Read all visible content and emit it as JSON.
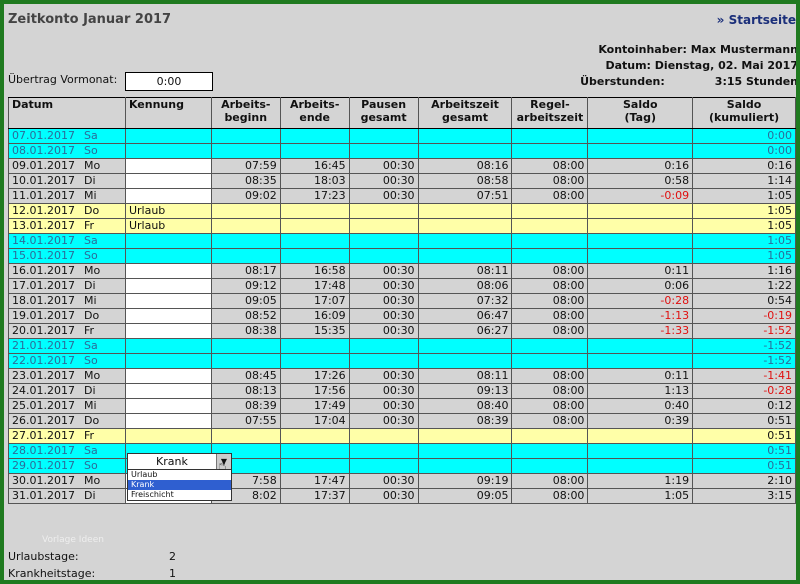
{
  "title": "Zeitkonto Januar 2017",
  "startseite": "» Startseite",
  "info": {
    "kontoinhaber": "Kontoinhaber: Max Mustermann",
    "datum": "Datum: Dienstag, 02. Mai 2017",
    "ueberstunden_label": "Überstunden:",
    "ueberstunden_value": "3:15 Stunden"
  },
  "uebertrag": {
    "label": "Übertrag Vormonat:",
    "value": "0:00"
  },
  "columns": [
    "Datum",
    "Kennung",
    "Arbeits-\nbeginn",
    "Arbeits-\nende",
    "Pausen\ngesamt",
    "Arbeitszeit\ngesamt",
    "Regel-\narbeitszeit",
    "Saldo\n(Tag)",
    "Saldo\n(kumuliert)"
  ],
  "rows": [
    {
      "type": "weekend",
      "date": "07.01.2017",
      "wd": "Sa",
      "kennung": "",
      "beginn": "",
      "ende": "",
      "pause": "",
      "az": "",
      "regel": "",
      "saldo": "",
      "kum": "0:00",
      "sneg": false,
      "kneg": false
    },
    {
      "type": "weekend",
      "date": "08.01.2017",
      "wd": "So",
      "kennung": "",
      "beginn": "",
      "ende": "",
      "pause": "",
      "az": "",
      "regel": "",
      "saldo": "",
      "kum": "0:00",
      "sneg": false,
      "kneg": false
    },
    {
      "type": "work",
      "date": "09.01.2017",
      "wd": "Mo",
      "kennung": "",
      "beginn": "07:59",
      "ende": "16:45",
      "pause": "00:30",
      "az": "08:16",
      "regel": "08:00",
      "saldo": "0:16",
      "kum": "0:16",
      "sneg": false,
      "kneg": false
    },
    {
      "type": "work",
      "date": "10.01.2017",
      "wd": "Di",
      "kennung": "",
      "beginn": "08:35",
      "ende": "18:03",
      "pause": "00:30",
      "az": "08:58",
      "regel": "08:00",
      "saldo": "0:58",
      "kum": "1:14",
      "sneg": false,
      "kneg": false
    },
    {
      "type": "work",
      "date": "11.01.2017",
      "wd": "Mi",
      "kennung": "",
      "beginn": "09:02",
      "ende": "17:23",
      "pause": "00:30",
      "az": "07:51",
      "regel": "08:00",
      "saldo": "-0:09",
      "kum": "1:05",
      "sneg": true,
      "kneg": false
    },
    {
      "type": "holiday",
      "date": "12.01.2017",
      "wd": "Do",
      "kennung": "Urlaub",
      "beginn": "",
      "ende": "",
      "pause": "",
      "az": "",
      "regel": "",
      "saldo": "",
      "kum": "1:05",
      "sneg": false,
      "kneg": false
    },
    {
      "type": "holiday",
      "date": "13.01.2017",
      "wd": "Fr",
      "kennung": "Urlaub",
      "beginn": "",
      "ende": "",
      "pause": "",
      "az": "",
      "regel": "",
      "saldo": "",
      "kum": "1:05",
      "sneg": false,
      "kneg": false
    },
    {
      "type": "weekend",
      "date": "14.01.2017",
      "wd": "Sa",
      "kennung": "",
      "beginn": "",
      "ende": "",
      "pause": "",
      "az": "",
      "regel": "",
      "saldo": "",
      "kum": "1:05",
      "sneg": false,
      "kneg": false
    },
    {
      "type": "weekend",
      "date": "15.01.2017",
      "wd": "So",
      "kennung": "",
      "beginn": "",
      "ende": "",
      "pause": "",
      "az": "",
      "regel": "",
      "saldo": "",
      "kum": "1:05",
      "sneg": false,
      "kneg": false
    },
    {
      "type": "work",
      "date": "16.01.2017",
      "wd": "Mo",
      "kennung": "",
      "beginn": "08:17",
      "ende": "16:58",
      "pause": "00:30",
      "az": "08:11",
      "regel": "08:00",
      "saldo": "0:11",
      "kum": "1:16",
      "sneg": false,
      "kneg": false
    },
    {
      "type": "work",
      "date": "17.01.2017",
      "wd": "Di",
      "kennung": "",
      "beginn": "09:12",
      "ende": "17:48",
      "pause": "00:30",
      "az": "08:06",
      "regel": "08:00",
      "saldo": "0:06",
      "kum": "1:22",
      "sneg": false,
      "kneg": false
    },
    {
      "type": "work",
      "date": "18.01.2017",
      "wd": "Mi",
      "kennung": "",
      "beginn": "09:05",
      "ende": "17:07",
      "pause": "00:30",
      "az": "07:32",
      "regel": "08:00",
      "saldo": "-0:28",
      "kum": "0:54",
      "sneg": true,
      "kneg": false
    },
    {
      "type": "work",
      "date": "19.01.2017",
      "wd": "Do",
      "kennung": "",
      "beginn": "08:52",
      "ende": "16:09",
      "pause": "00:30",
      "az": "06:47",
      "regel": "08:00",
      "saldo": "-1:13",
      "kum": "-0:19",
      "sneg": true,
      "kneg": true
    },
    {
      "type": "work",
      "date": "20.01.2017",
      "wd": "Fr",
      "kennung": "",
      "beginn": "08:38",
      "ende": "15:35",
      "pause": "00:30",
      "az": "06:27",
      "regel": "08:00",
      "saldo": "-1:33",
      "kum": "-1:52",
      "sneg": true,
      "kneg": true
    },
    {
      "type": "weekend",
      "date": "21.01.2017",
      "wd": "Sa",
      "kennung": "",
      "beginn": "",
      "ende": "",
      "pause": "",
      "az": "",
      "regel": "",
      "saldo": "",
      "kum": "-1:52",
      "sneg": false,
      "kneg": false
    },
    {
      "type": "weekend",
      "date": "22.01.2017",
      "wd": "So",
      "kennung": "",
      "beginn": "",
      "ende": "",
      "pause": "",
      "az": "",
      "regel": "",
      "saldo": "",
      "kum": "-1:52",
      "sneg": false,
      "kneg": false
    },
    {
      "type": "work",
      "date": "23.01.2017",
      "wd": "Mo",
      "kennung": "",
      "beginn": "08:45",
      "ende": "17:26",
      "pause": "00:30",
      "az": "08:11",
      "regel": "08:00",
      "saldo": "0:11",
      "kum": "-1:41",
      "sneg": false,
      "kneg": true
    },
    {
      "type": "work",
      "date": "24.01.2017",
      "wd": "Di",
      "kennung": "",
      "beginn": "08:13",
      "ende": "17:56",
      "pause": "00:30",
      "az": "09:13",
      "regel": "08:00",
      "saldo": "1:13",
      "kum": "-0:28",
      "sneg": false,
      "kneg": true
    },
    {
      "type": "work",
      "date": "25.01.2017",
      "wd": "Mi",
      "kennung": "",
      "beginn": "08:39",
      "ende": "17:49",
      "pause": "00:30",
      "az": "08:40",
      "regel": "08:00",
      "saldo": "0:40",
      "kum": "0:12",
      "sneg": false,
      "kneg": false
    },
    {
      "type": "work",
      "date": "26.01.2017",
      "wd": "Do",
      "kennung": "",
      "beginn": "07:55",
      "ende": "17:04",
      "pause": "00:30",
      "az": "08:39",
      "regel": "08:00",
      "saldo": "0:39",
      "kum": "0:51",
      "sneg": false,
      "kneg": false
    },
    {
      "type": "holiday",
      "date": "27.01.2017",
      "wd": "Fr",
      "kennung": "",
      "beginn": "",
      "ende": "",
      "pause": "",
      "az": "",
      "regel": "",
      "saldo": "",
      "kum": "0:51",
      "sneg": false,
      "kneg": false
    },
    {
      "type": "weekend",
      "date": "28.01.2017",
      "wd": "Sa",
      "kennung": "",
      "beginn": "",
      "ende": "",
      "pause": "",
      "az": "",
      "regel": "",
      "saldo": "",
      "kum": "0:51",
      "sneg": false,
      "kneg": false
    },
    {
      "type": "weekend",
      "date": "29.01.2017",
      "wd": "So",
      "kennung": "",
      "beginn": "",
      "ende": "",
      "pause": "",
      "az": "",
      "regel": "",
      "saldo": "",
      "kum": "0:51",
      "sneg": false,
      "kneg": false
    },
    {
      "type": "work",
      "date": "30.01.2017",
      "wd": "Mo",
      "kennung": "",
      "beginn": "7:58",
      "ende": "17:47",
      "pause": "00:30",
      "az": "09:19",
      "regel": "08:00",
      "saldo": "1:19",
      "kum": "2:10",
      "sneg": false,
      "kneg": false
    },
    {
      "type": "work",
      "date": "31.01.2017",
      "wd": "Di",
      "kennung": "",
      "beginn": "8:02",
      "ende": "17:37",
      "pause": "00:30",
      "az": "09:05",
      "regel": "08:00",
      "saldo": "1:05",
      "kum": "3:15",
      "sneg": false,
      "kneg": false
    }
  ],
  "dropdown": {
    "selected": "Krank",
    "options": [
      "Urlaub",
      "Krank",
      "Freischicht"
    ],
    "highlighted": "Krank"
  },
  "watermark": "Vorlage Ideen",
  "footer": {
    "urlaubstage_label": "Urlaubstage:",
    "urlaubstage_value": "2",
    "krankheitstage_label": "Krankheitstage:",
    "krankheitstage_value": "1"
  },
  "colors": {
    "frame": "#1f7a1f",
    "weekend": "#00ffff",
    "holiday": "#ffffa8",
    "negative": "#e01010"
  }
}
